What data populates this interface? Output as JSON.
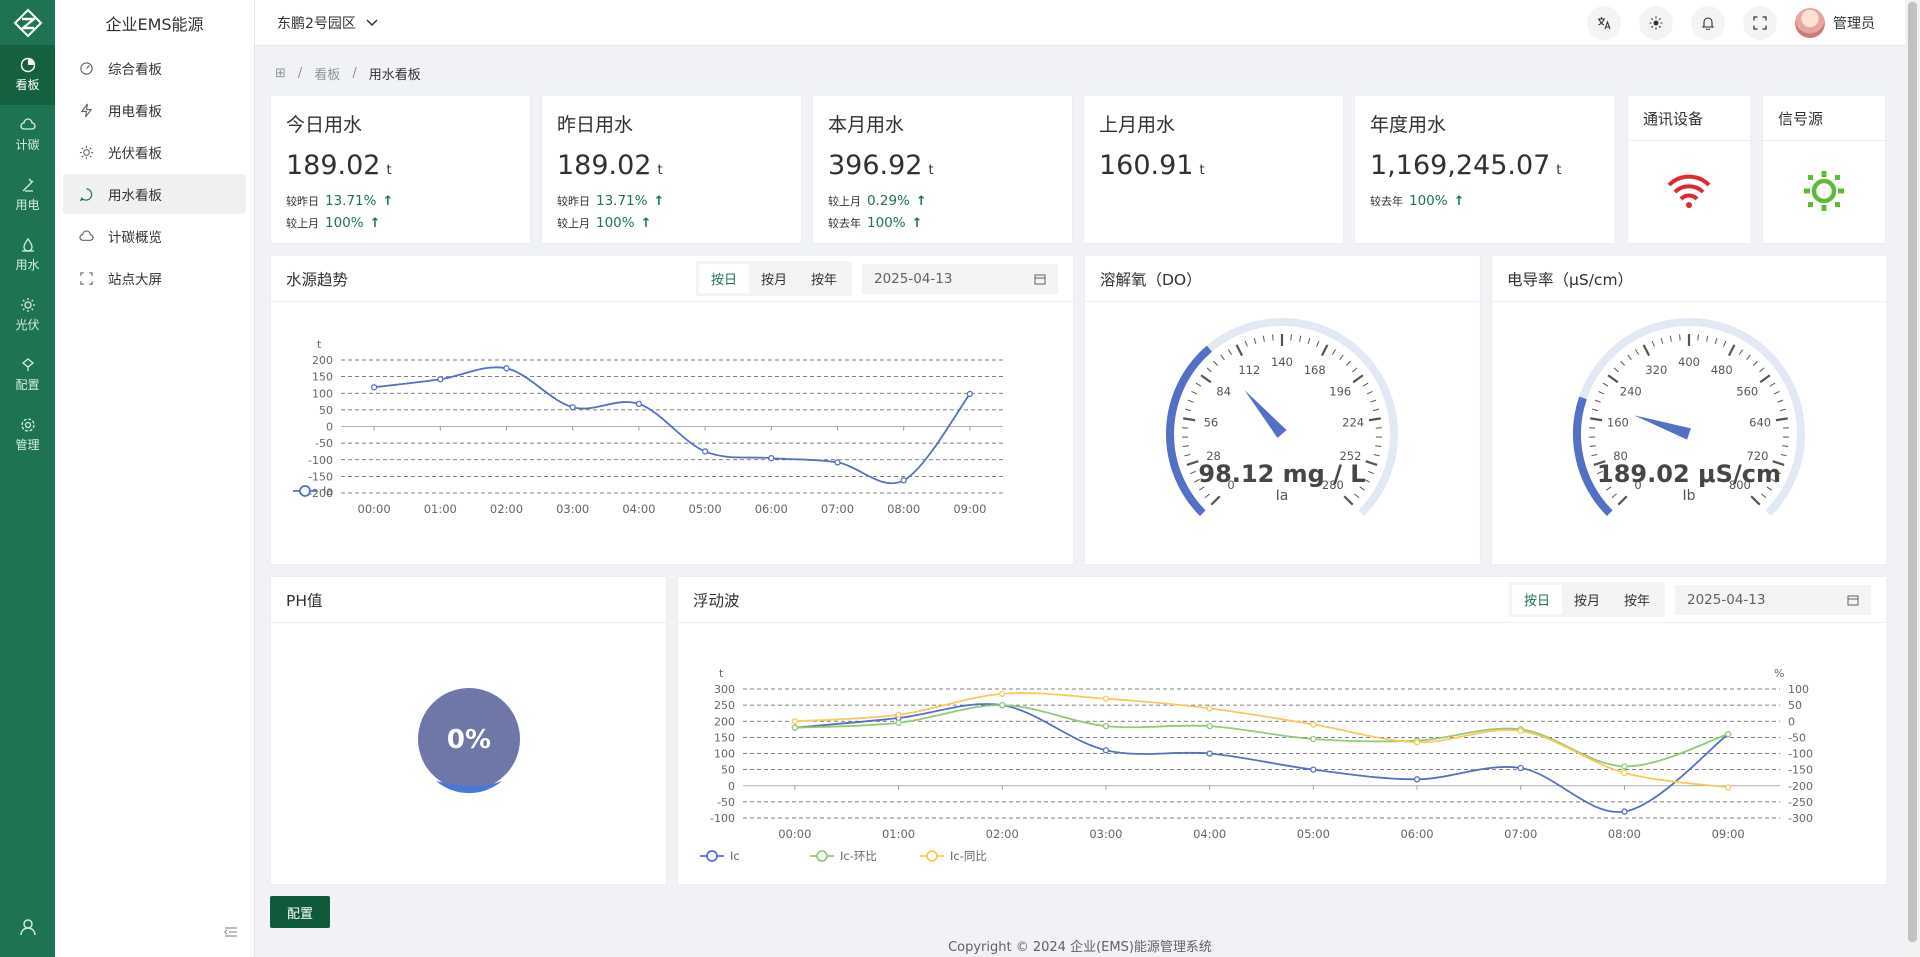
{
  "rail": {
    "items": [
      {
        "label": "看板",
        "icon": "dashboard-icon"
      },
      {
        "label": "计碳",
        "icon": "carbon-icon"
      },
      {
        "label": "用电",
        "icon": "electric-icon"
      },
      {
        "label": "用水",
        "icon": "water-icon"
      },
      {
        "label": "光伏",
        "icon": "sun-icon"
      },
      {
        "label": "配置",
        "icon": "config-icon"
      },
      {
        "label": "管理",
        "icon": "gear-icon"
      }
    ]
  },
  "submenu": {
    "title": "企业EMS能源",
    "items": [
      {
        "label": "综合看板"
      },
      {
        "label": "用电看板"
      },
      {
        "label": "光伏看板"
      },
      {
        "label": "用水看板"
      },
      {
        "label": "计碳概览"
      },
      {
        "label": "站点大屏"
      }
    ]
  },
  "header": {
    "park": "东鹏2号园区",
    "username": "管理员"
  },
  "breadcrumb": {
    "home": "⊞",
    "sep": "/",
    "level1": "看板",
    "level2": "用水看板"
  },
  "stats": [
    {
      "title": "今日用水",
      "value": "189.02",
      "unit": "t",
      "l1_label": "较昨日",
      "l1_pct": "13.71%",
      "l2_label": "较上月",
      "l2_pct": "100%"
    },
    {
      "title": "昨日用水",
      "value": "189.02",
      "unit": "t",
      "l1_label": "较昨日",
      "l1_pct": "13.71%",
      "l2_label": "较上月",
      "l2_pct": "100%"
    },
    {
      "title": "本月用水",
      "value": "396.92",
      "unit": "t",
      "l1_label": "较上月",
      "l1_pct": "0.29%",
      "l2_label": "较去年",
      "l2_pct": "100%"
    },
    {
      "title": "上月用水",
      "value": "160.91",
      "unit": "t"
    },
    {
      "title": "年度用水",
      "value": "1,169,245.07",
      "unit": "t",
      "l1_label": "较去年",
      "l1_pct": "100%"
    }
  ],
  "device_cards": {
    "comm": "通讯设备",
    "signal": "信号源"
  },
  "colors": {
    "accent": "#1e7452",
    "series_blue": "#5470c6",
    "series_green": "#91cc75",
    "series_yellow": "#fac858",
    "wifi_red": "#e0282e",
    "signal_green": "#5dbb3a"
  },
  "water_trend": {
    "title": "水源趋势",
    "seg": [
      "按日",
      "按月",
      "按年"
    ],
    "date": "2025-04-13",
    "ylabel": "t",
    "legend": "Ia"
  },
  "do_gauge": {
    "title": "溶解氧（DO）",
    "value_text": "98.12 mg / L",
    "label": "Ia",
    "ticks": [
      "0",
      "28",
      "56",
      "84",
      "112",
      "140",
      "168",
      "196",
      "224",
      "252",
      "280"
    ]
  },
  "ec_gauge": {
    "title": "电导率（μS/cm）",
    "value_text": "189.02 μS/cm",
    "label": "Ib",
    "ticks": [
      "0",
      "80",
      "160",
      "240",
      "320",
      "400",
      "480",
      "560",
      "640",
      "720",
      "800"
    ]
  },
  "ph": {
    "title": "PH值",
    "value_text": "0%"
  },
  "float_wave": {
    "title": "浮动波",
    "seg": [
      "按日",
      "按月",
      "按年"
    ],
    "date": "2025-04-13",
    "ylabel_left": "t",
    "ylabel_right": "%",
    "legend": [
      "Ic",
      "Ic-环比",
      "Ic-同比"
    ]
  },
  "config_button": "配置",
  "footer": "Copyright © 2024 企业(EMS)能源管理系统",
  "chart_data": [
    {
      "type": "line",
      "title": "水源趋势",
      "ylabel": "t",
      "ylim": [
        -200,
        200
      ],
      "yticks": [
        200,
        150,
        100,
        50,
        0,
        -50,
        -100,
        -150,
        -200
      ],
      "categories": [
        "00:00",
        "01:00",
        "02:00",
        "03:00",
        "04:00",
        "05:00",
        "06:00",
        "07:00",
        "08:00",
        "09:00"
      ],
      "series": [
        {
          "name": "Ia",
          "values": [
            118,
            142,
            175,
            58,
            68,
            -75,
            -95,
            -108,
            -162,
            98
          ]
        }
      ],
      "grid": true,
      "legend": "bottom-left"
    },
    {
      "type": "line",
      "title": "浮动波",
      "ylabel": "t",
      "y2label": "%",
      "ylim": [
        -100,
        300
      ],
      "y2lim": [
        -300,
        100
      ],
      "yticks": [
        300,
        250,
        200,
        150,
        100,
        50,
        0,
        -50,
        -100
      ],
      "y2ticks": [
        100,
        50,
        0,
        -50,
        -100,
        -150,
        -200,
        -250,
        -300
      ],
      "categories": [
        "00:00",
        "01:00",
        "02:00",
        "03:00",
        "04:00",
        "05:00",
        "06:00",
        "07:00",
        "08:00",
        "09:00"
      ],
      "series": [
        {
          "name": "Ic",
          "values": [
            180,
            210,
            250,
            110,
            100,
            50,
            20,
            55,
            -80,
            160
          ]
        },
        {
          "name": "Ic-环比",
          "values": [
            180,
            195,
            250,
            185,
            185,
            145,
            140,
            175,
            60,
            160
          ]
        },
        {
          "name": "Ic-同比",
          "values": [
            200,
            220,
            285,
            270,
            240,
            190,
            135,
            170,
            40,
            -5
          ]
        }
      ],
      "grid": true,
      "legend": "bottom-left"
    }
  ]
}
